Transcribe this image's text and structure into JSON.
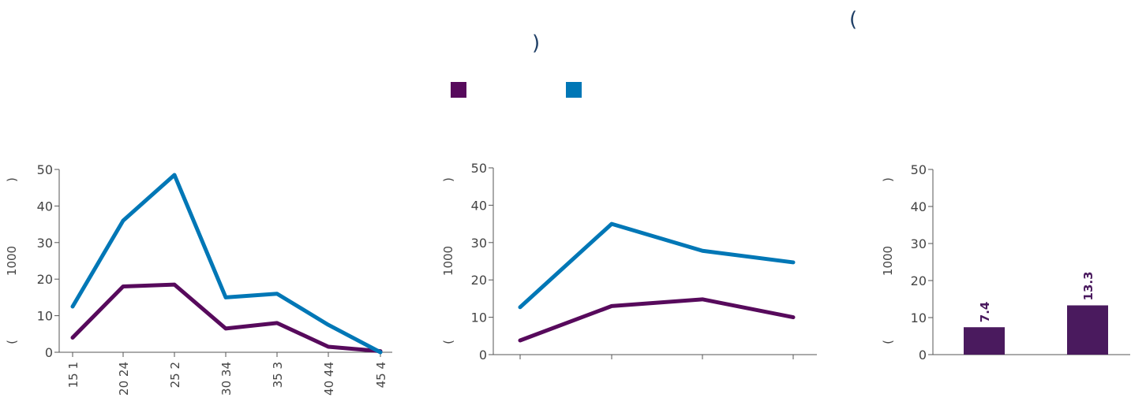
{
  "header": {
    "title_open_paren": "(",
    "title_close_paren": ")"
  },
  "legend": [
    {
      "name": "",
      "color": "#570a5c"
    },
    {
      "name": "",
      "color": "#0077b6"
    }
  ],
  "colors": {
    "purple": "#570a5c",
    "blue": "#0077b6",
    "bar": "#4a1a5e",
    "axis": "#555555"
  },
  "chart_data": [
    {
      "type": "line",
      "ylabel_parts": [
        "(",
        "1000",
        ")"
      ],
      "ylim": [
        0,
        50
      ],
      "yticks": [
        0,
        10,
        20,
        30,
        40,
        50
      ],
      "categories": [
        "15 1",
        "20 24",
        "25 2",
        "30 34",
        "35 3",
        "40 44",
        "45 4"
      ],
      "series": [
        {
          "values": [
            4,
            18,
            18.5,
            6.5,
            8,
            1.5,
            0.3
          ],
          "color": "#570a5c"
        },
        {
          "values": [
            12.5,
            36,
            48.5,
            15,
            16,
            7.5,
            0
          ],
          "color": "#0077b6"
        }
      ]
    },
    {
      "type": "line",
      "ylabel_parts": [
        "(",
        "1000",
        ")"
      ],
      "ylim": [
        0,
        50
      ],
      "yticks": [
        0,
        10,
        20,
        30,
        40,
        50
      ],
      "categories": [
        "",
        "",
        "",
        ""
      ],
      "series": [
        {
          "values": [
            3.8,
            13,
            14.8,
            10
          ],
          "color": "#570a5c"
        },
        {
          "values": [
            12.7,
            35,
            27.8,
            24.7
          ],
          "color": "#0077b6"
        }
      ]
    },
    {
      "type": "bar",
      "ylabel_parts": [
        "(",
        "1000",
        ")"
      ],
      "ylim": [
        0,
        50
      ],
      "yticks": [
        0,
        10,
        20,
        30,
        40,
        50
      ],
      "categories": [
        "",
        ""
      ],
      "values": [
        7.4,
        13.3
      ],
      "data_labels": [
        "7.4",
        "13.3"
      ],
      "color": "#4a1a5e"
    }
  ]
}
